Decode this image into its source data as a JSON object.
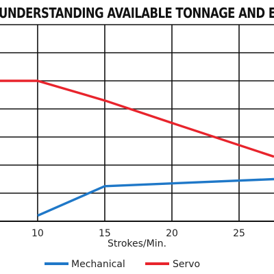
{
  "chart_data": {
    "type": "line",
    "title": "UNDERSTANDING AVAILABLE TONNAGE AND ENERGY",
    "xlabel": "Strokes/Min.",
    "ylabel": "",
    "xticks": [
      10,
      15,
      20,
      25
    ],
    "xlim": [
      7.2,
      27.6
    ],
    "ylim": [
      0,
      7
    ],
    "grid": true,
    "legend_position": "bottom",
    "series": [
      {
        "name": "Mechanical",
        "color": "#1f78c8",
        "points": [
          [
            10,
            0.2
          ],
          [
            15,
            1.25
          ],
          [
            27.6,
            1.5
          ]
        ]
      },
      {
        "name": "Servo",
        "color": "#e8242c",
        "points": [
          [
            7.2,
            5
          ],
          [
            10,
            5
          ],
          [
            15,
            4.3
          ],
          [
            20,
            3.5
          ],
          [
            27.6,
            2.3
          ]
        ]
      }
    ]
  }
}
